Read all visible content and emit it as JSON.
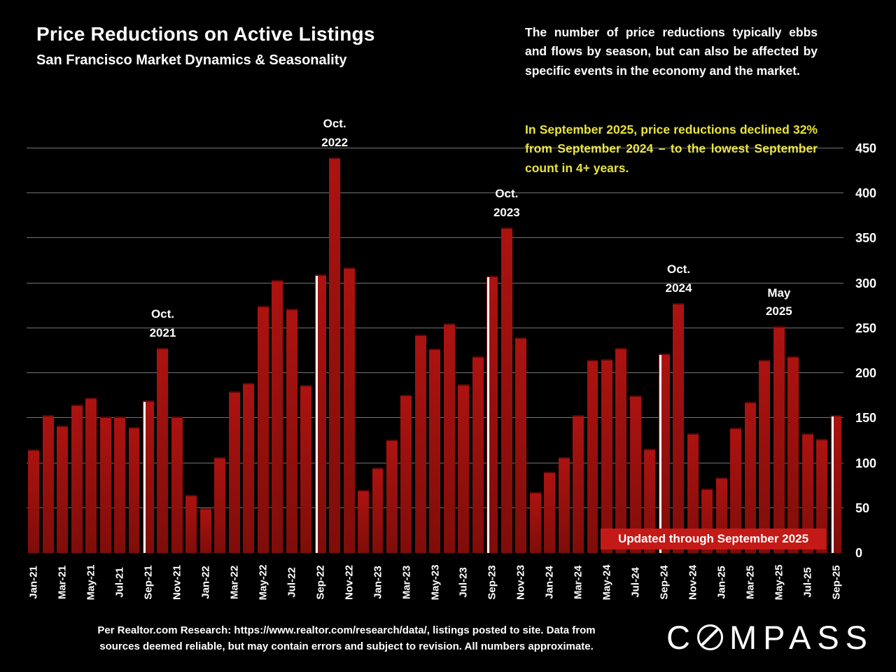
{
  "header": {
    "title": "Price Reductions on Active Listings",
    "subtitle": "San Francisco Market Dynamics & Seasonality"
  },
  "commentary": {
    "intro": "The number of price reductions typically ebbs and flows by season, but can also be affected by specific events in the economy and the market.",
    "highlight": "In September 2025, price reductions declined 32% from September 2024 – to the lowest September count in 4+ years.",
    "highlight_color": "#e9e43b"
  },
  "chart_data": {
    "type": "bar",
    "title": "Price Reductions on Active Listings — San Francisco",
    "categories": [
      "Jan-21",
      "Feb-21",
      "Mar-21",
      "Apr-21",
      "May-21",
      "Jun-21",
      "Jul-21",
      "Aug-21",
      "Sep-21",
      "Oct-21",
      "Nov-21",
      "Dec-21",
      "Jan-22",
      "Feb-22",
      "Mar-22",
      "Apr-22",
      "May-22",
      "Jun-22",
      "Jul-22",
      "Aug-22",
      "Sep-22",
      "Oct-22",
      "Nov-22",
      "Dec-22",
      "Jan-23",
      "Feb-23",
      "Mar-23",
      "Apr-23",
      "May-23",
      "Jun-23",
      "Jul-23",
      "Aug-23",
      "Sep-23",
      "Oct-23",
      "Nov-23",
      "Dec-23",
      "Jan-24",
      "Feb-24",
      "Mar-24",
      "Apr-24",
      "May-24",
      "Jun-24",
      "Jul-24",
      "Aug-24",
      "Sep-24",
      "Oct-24",
      "Nov-24",
      "Dec-24",
      "Jan-25",
      "Feb-25",
      "Mar-25",
      "Apr-25",
      "May-25",
      "Jun-25",
      "Jul-25",
      "Aug-25",
      "Sep-25"
    ],
    "values": [
      115,
      153,
      142,
      165,
      173,
      152,
      152,
      140,
      170,
      228,
      152,
      65,
      50,
      107,
      180,
      189,
      275,
      304,
      272,
      187,
      310,
      440,
      318,
      70,
      95,
      126,
      176,
      243,
      227,
      255,
      188,
      219,
      308,
      362,
      240,
      68,
      90,
      107,
      153,
      215,
      216,
      228,
      175,
      116,
      222,
      278,
      133,
      72,
      84,
      139,
      168,
      215,
      252,
      219,
      133,
      127,
      153
    ],
    "xlabel": "",
    "ylabel": "",
    "ylim": [
      0,
      450
    ],
    "yticks": [
      0,
      50,
      100,
      150,
      200,
      250,
      300,
      350,
      400,
      450
    ],
    "x_tick_every": 2,
    "grid": true,
    "legend": false,
    "bar_color": "#ab1310",
    "bar_color_dark": "#7f0d0a",
    "highlight_stripe_color": "#ffffff",
    "highlighted_months": [
      "Sep-21",
      "Sep-22",
      "Sep-23",
      "Sep-24",
      "Sep-25"
    ],
    "annotations": [
      {
        "month": "Oct-21",
        "line1": "Oct.",
        "line2": "2021"
      },
      {
        "month": "Oct-22",
        "line1": "Oct.",
        "line2": "2022"
      },
      {
        "month": "Oct-23",
        "line1": "Oct.",
        "line2": "2023"
      },
      {
        "month": "Oct-24",
        "line1": "Oct.",
        "line2": "2024"
      },
      {
        "month": "May-25",
        "line1": "May",
        "line2": "2025"
      }
    ]
  },
  "banner": {
    "text": "Updated through September 2025",
    "bg": "#c41a17"
  },
  "footer": {
    "line1": "Per Realtor.com Research:  https://www.realtor.com/research/data/, listings posted to site. Data from",
    "line2": "sources deemed reliable, but may contain errors and subject to revision. All numbers approximate."
  },
  "logo": {
    "prefix": "C",
    "suffix": "MPASS"
  }
}
